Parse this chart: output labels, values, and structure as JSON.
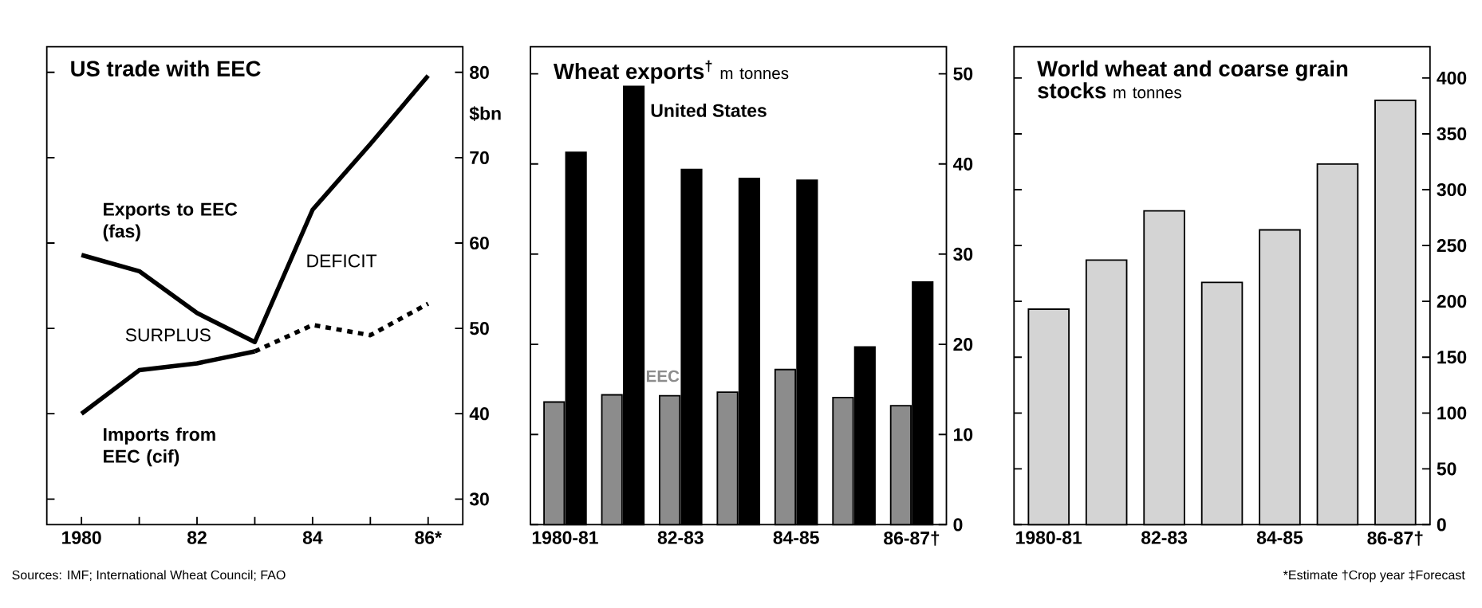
{
  "chart_data": [
    {
      "type": "line",
      "title": "US trade with EEC",
      "ylabel": "$bn",
      "categories": [
        "1980",
        null,
        "82",
        null,
        "84",
        null,
        "86*"
      ],
      "ylim": [
        27,
        83
      ],
      "yticks": [
        30,
        40,
        50,
        60,
        70,
        80
      ],
      "series": [
        {
          "name": "Exports to EEC (fas)",
          "color": "#000000",
          "line_style": "solid",
          "values": [
            58.6,
            56.7,
            51.8,
            48.4,
            63.9,
            71.6,
            79.6
          ]
        },
        {
          "name": "Imports from EEC (cif)",
          "color": "#000000",
          "line_style": "solid",
          "values": [
            40,
            45.1,
            45.9,
            47.3,
            null,
            null,
            null
          ]
        },
        {
          "color": "#000000",
          "line_style": "dashed",
          "values": [
            null,
            null,
            null,
            47.3,
            50.4,
            49.2,
            52.9
          ]
        }
      ],
      "annotations": [
        "SURPLUS",
        "DEFICIT",
        "Sources: IMF; International Wheat Council; FAO"
      ]
    },
    {
      "type": "bar",
      "title": "Wheat exports$^{†}$",
      "ylabel": "m tonnes",
      "categories": [
        "1980-81",
        null,
        "82-83",
        null,
        "84-85",
        null,
        "86-87†"
      ],
      "ylim": [
        0,
        53
      ],
      "yticks": [
        0,
        10,
        20,
        30,
        40,
        50
      ],
      "series": [
        {
          "name": "EEC",
          "color": "#8c8c8c",
          "values": [
            13.6,
            14.4,
            14.3,
            14.7,
            17.2,
            14.1,
            13.2
          ]
        },
        {
          "name": "United States",
          "color": "#000000",
          "values": [
            41.3,
            48.6,
            39.4,
            38.4,
            38.2,
            19.7,
            26.9
          ]
        }
      ]
    },
    {
      "type": "bar",
      "title": "World wheat and coarse grain stocks",
      "ylabel": "m tonnes",
      "categories": [
        "1980-81",
        null,
        "82-83",
        null,
        "84-85",
        null,
        "86-87†"
      ],
      "ylim": [
        0,
        428
      ],
      "yticks": [
        0,
        50,
        100,
        150,
        200,
        250,
        300,
        350,
        400
      ],
      "series": [
        {
          "color": "#d4d4d4",
          "values": [
            193,
            237,
            281,
            217,
            264,
            323,
            380
          ]
        }
      ],
      "annotations": [
        "*Estimate †Crop year ‡Forecast"
      ]
    }
  ]
}
